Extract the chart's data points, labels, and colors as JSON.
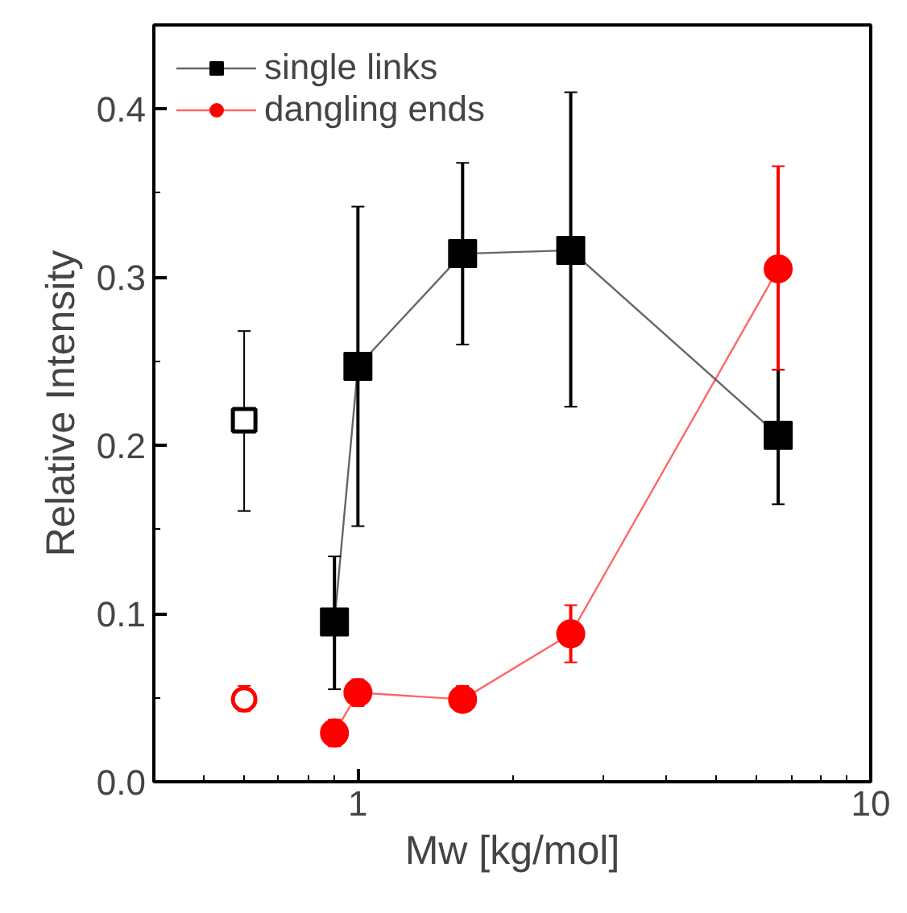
{
  "chart_data": {
    "type": "line",
    "xlabel": "Mw [kg/mol]",
    "ylabel": "Relative Intensity",
    "log": "x",
    "grid": false,
    "legend": "top left",
    "line_style": "solid",
    "xlim": [
      0.4,
      10
    ],
    "xticks": [
      1,
      10
    ],
    "ylim": [
      0,
      0.45
    ],
    "yticks": [
      {
        "value": 0,
        "label": "0.0"
      },
      0.1,
      0.2,
      0.3,
      0.4
    ],
    "series": [
      {
        "type": "scatter",
        "marker": "square",
        "color": "#000000",
        "x": [
          0.6
        ],
        "values": [
          0.215
        ],
        "errors": [
          [
            0.161,
            0.268
          ]
        ]
      },
      {
        "type": "scatter",
        "marker": "circle",
        "color": "#ff0000",
        "x": [
          0.6
        ],
        "values": [
          0.049
        ],
        "errors": [
          [
            0.042,
            0.057
          ]
        ]
      },
      {
        "name": "single links",
        "marker": "square",
        "color": "#000000",
        "x": [
          0.9,
          1.0,
          1.6,
          2.6,
          6.6
        ],
        "values": [
          0.095,
          0.247,
          0.314,
          0.316,
          0.206
        ],
        "errors": [
          [
            0.055,
            0.134
          ],
          [
            0.152,
            0.342
          ],
          [
            0.26,
            0.368
          ],
          [
            0.223,
            0.41
          ],
          [
            0.165,
            0.245
          ]
        ]
      },
      {
        "name": "dangling ends",
        "marker": "circle",
        "color": "#ff0000",
        "x": [
          0.9,
          1.0,
          1.6,
          2.6,
          6.6
        ],
        "values": [
          0.029,
          0.053,
          0.049,
          0.088,
          0.305
        ],
        "errors": [
          [
            0.021,
            0.037
          ],
          [
            0.045,
            0.061
          ],
          [
            0.042,
            0.057
          ],
          [
            0.071,
            0.105
          ],
          [
            0.245,
            0.366
          ]
        ]
      }
    ]
  }
}
